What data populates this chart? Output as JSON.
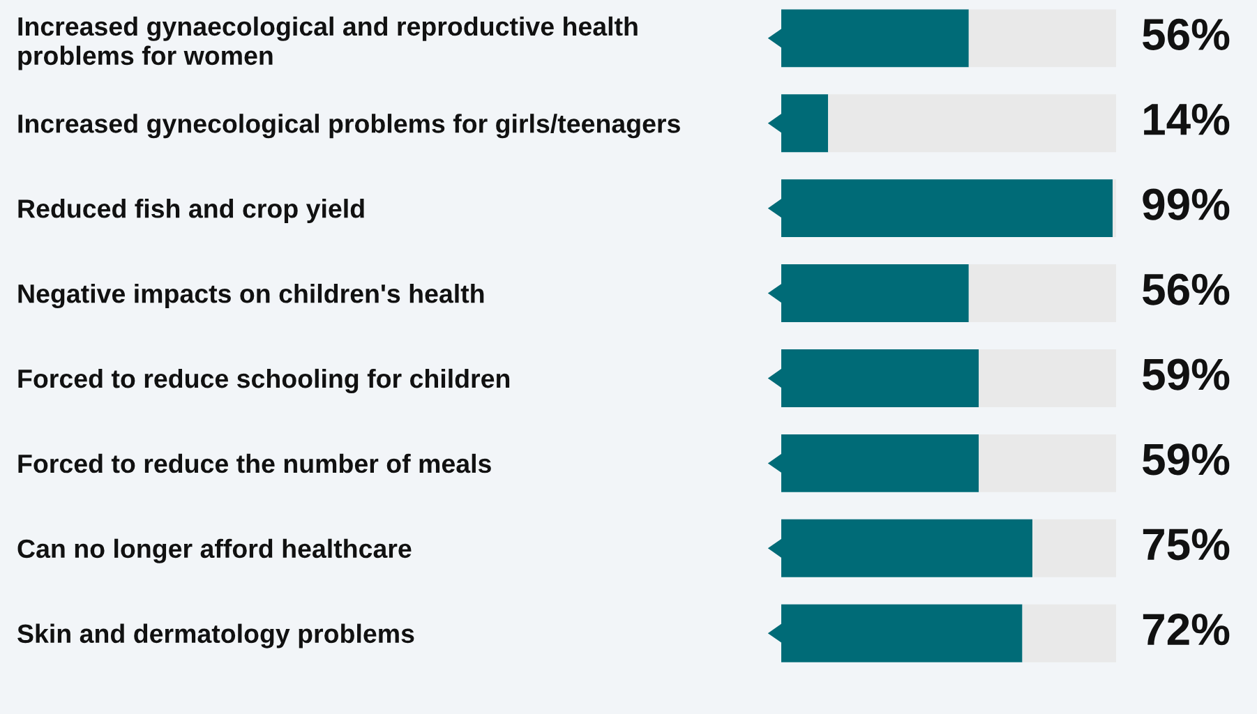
{
  "chart_data": {
    "type": "bar",
    "orientation": "horizontal",
    "stacked": true,
    "categories": [
      "Increased gynaecological and reproductive health problems for women",
      "Increased gynecological problems for girls/teenagers",
      "Reduced fish and crop yield",
      "Negative impacts on children's health",
      "Forced to reduce schooling for children",
      "Forced to reduce the number of meals",
      "Can no longer afford healthcare",
      "Skin and dermatology problems"
    ],
    "series": [
      {
        "color": "#006b77",
        "values": [
          56,
          14,
          99,
          56,
          59,
          59,
          75,
          72
        ],
        "value_labels": [
          "56%",
          "14%",
          "99%",
          "56%",
          "59%",
          "59%",
          "75%",
          "72%"
        ]
      },
      {
        "color": "#e9e9e9",
        "values": [
          44,
          86,
          1,
          44,
          41,
          41,
          25,
          28
        ]
      }
    ]
  }
}
